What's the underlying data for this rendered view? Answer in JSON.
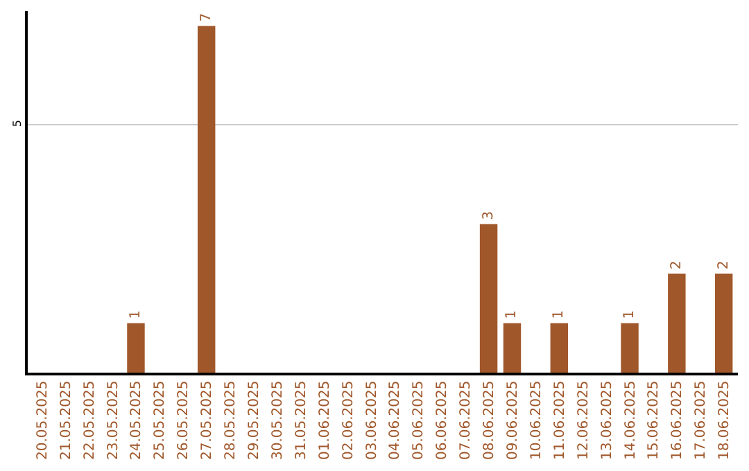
{
  "chart_data": {
    "type": "bar",
    "categories": [
      "20.05.2025",
      "21.05.2025",
      "22.05.2025",
      "23.05.2025",
      "24.05.2025",
      "25.05.2025",
      "26.05.2025",
      "27.05.2025",
      "28.05.2025",
      "29.05.2025",
      "30.05.2025",
      "31.05.2025",
      "01.06.2025",
      "02.06.2025",
      "03.06.2025",
      "04.06.2025",
      "05.06.2025",
      "06.06.2025",
      "07.06.2025",
      "08.06.2025",
      "09.06.2025",
      "10.06.2025",
      "11.06.2025",
      "12.06.2025",
      "13.06.2025",
      "14.06.2025",
      "15.06.2025",
      "16.06.2025",
      "17.06.2025",
      "18.06.2025"
    ],
    "values": [
      0,
      0,
      0,
      0,
      1,
      0,
      0,
      7,
      0,
      0,
      0,
      0,
      0,
      0,
      0,
      0,
      0,
      0,
      0,
      3,
      1,
      0,
      1,
      0,
      0,
      1,
      0,
      2,
      0,
      2
    ],
    "value_labels": [
      null,
      null,
      null,
      null,
      "1",
      null,
      null,
      "7",
      null,
      null,
      null,
      null,
      null,
      null,
      null,
      null,
      null,
      null,
      null,
      "3",
      "1",
      null,
      "1",
      null,
      null,
      "1",
      null,
      "2",
      null,
      "2"
    ],
    "color": "#a0572a",
    "ylim": [
      0,
      7.3
    ],
    "yticks": [
      5
    ],
    "grid": "y",
    "legend": false
  }
}
